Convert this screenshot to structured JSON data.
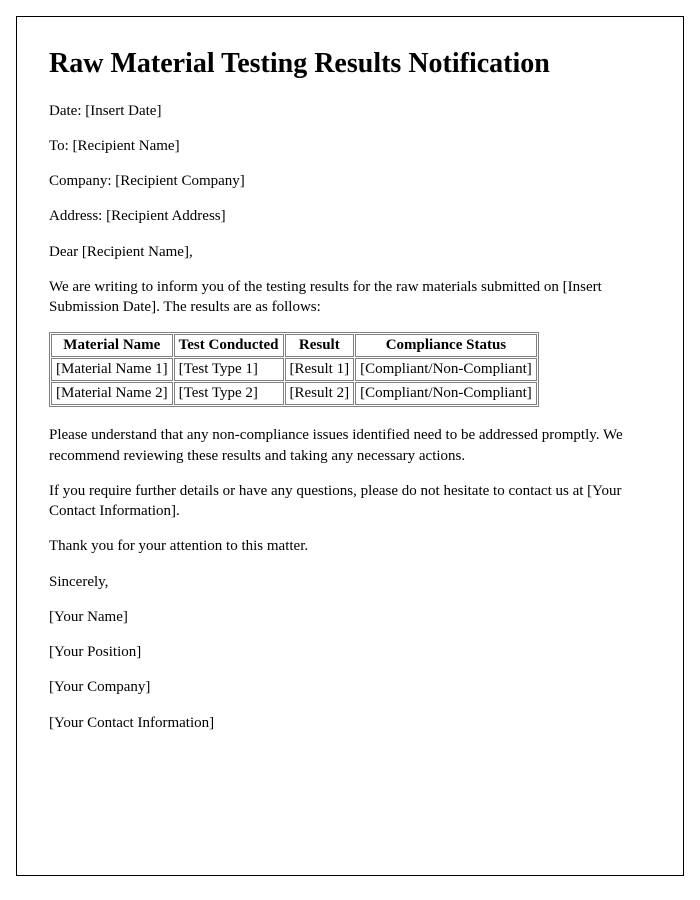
{
  "heading": "Raw Material Testing Results Notification",
  "meta": {
    "date_label": "Date: ",
    "date_value": "[Insert Date]",
    "to_label": "To: ",
    "to_value": "[Recipient Name]",
    "company_label": "Company: ",
    "company_value": "[Recipient Company]",
    "address_label": "Address: ",
    "address_value": "[Recipient Address]"
  },
  "salutation_prefix": "Dear ",
  "salutation_name": "[Recipient Name]",
  "salutation_suffix": ",",
  "intro": {
    "part1": "We are writing to inform you of the testing results for the raw materials submitted on ",
    "date_placeholder": "[Insert Submission Date]",
    "part2": ". The results are as follows:"
  },
  "table": {
    "headers": {
      "col1": "Material Name",
      "col2": "Test Conducted",
      "col3": "Result",
      "col4": "Compliance Status"
    },
    "rows": [
      {
        "material": "[Material Name 1]",
        "test": "[Test Type 1]",
        "result": "[Result 1]",
        "compliance": "[Compliant/Non-Compliant]"
      },
      {
        "material": "[Material Name 2]",
        "test": "[Test Type 2]",
        "result": "[Result 2]",
        "compliance": "[Compliant/Non-Compliant]"
      }
    ],
    "border_color": "#808080",
    "header_align": "center",
    "cell_align": "left",
    "font_size": 15
  },
  "body": {
    "p1": "Please understand that any non-compliance issues identified need to be addressed promptly. We recommend reviewing these results and taking any necessary actions.",
    "p2_part1": "If you require further details or have any questions, please do not hesitate to contact us at ",
    "p2_contact": "[Your Contact Information]",
    "p2_part2": ".",
    "p3": "Thank you for your attention to this matter."
  },
  "closing": {
    "signoff": "Sincerely,",
    "name": "[Your Name]",
    "position": "[Your Position]",
    "company": "[Your Company]",
    "contact": "[Your Contact Information]"
  },
  "styling": {
    "page_bg": "#ffffff",
    "text_color": "#000000",
    "border_color": "#000000",
    "heading_fontsize": 28,
    "body_fontsize": 15,
    "font_family": "Times New Roman"
  }
}
